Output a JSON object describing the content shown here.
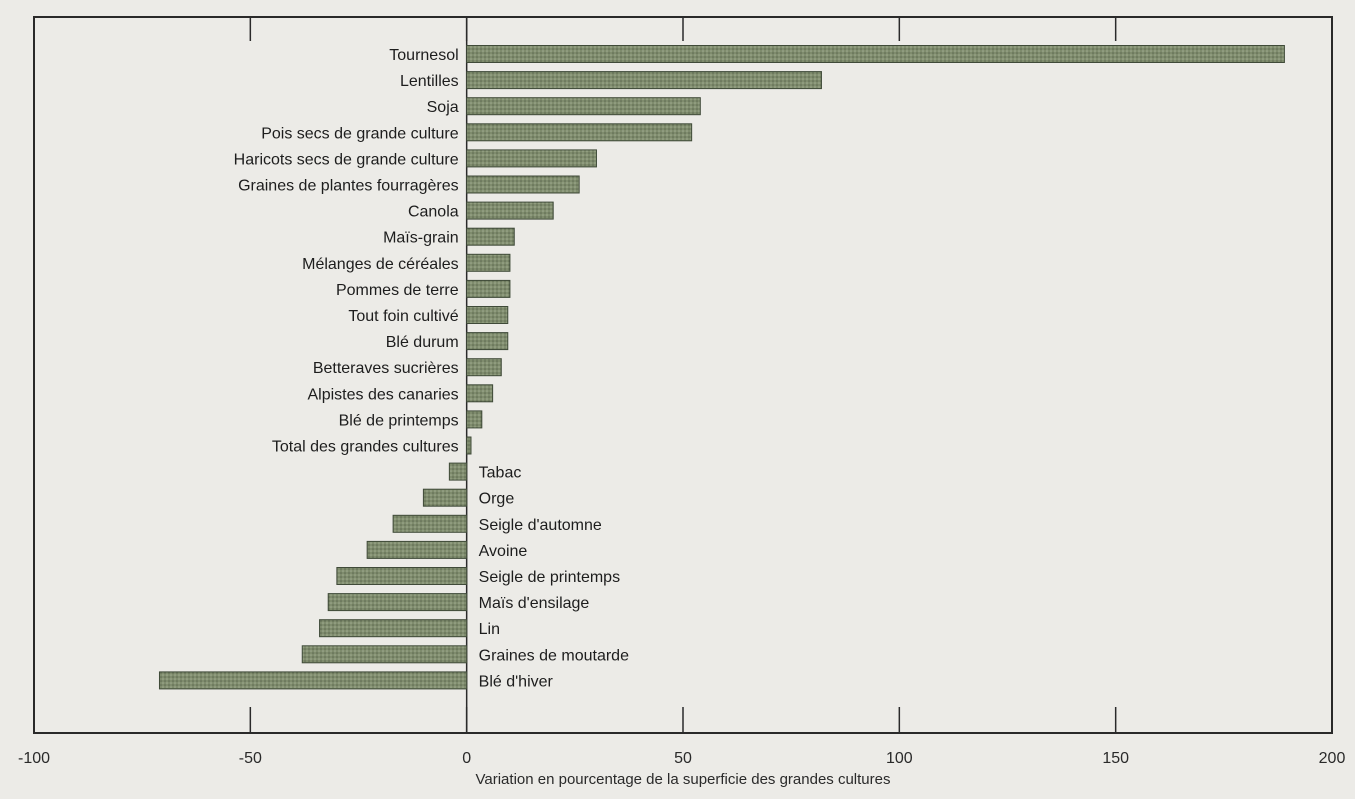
{
  "chart_data": {
    "type": "bar",
    "orientation": "horizontal",
    "title": "",
    "xlabel": "Variation en pourcentage de la superficie des grandes cultures",
    "ylabel": "",
    "xlim": [
      -100,
      200
    ],
    "xticks": [
      -100,
      -50,
      0,
      50,
      100,
      150,
      200
    ],
    "tick_labels": [
      "-100",
      "-50",
      "0",
      "50",
      "100",
      "150",
      "200"
    ],
    "grid": false,
    "legend": "none",
    "colors": {
      "bar_fill": "#7d8a6c",
      "bar_stroke": "#3f4a38",
      "background": "#ecebe7",
      "frame": "#2a2a2a"
    },
    "categories": [
      "Tournesol",
      "Lentilles",
      "Soja",
      "Pois secs de grande culture",
      "Haricots secs de grande culture",
      "Graines de plantes fourragères",
      "Canola",
      "Maïs-grain",
      "Mélanges de céréales",
      "Pommes de terre",
      "Tout foin cultivé",
      "Blé durum",
      "Betteraves sucrières",
      "Alpistes des canaries",
      "Blé de printemps",
      "Total des grandes cultures",
      "Tabac",
      "Orge",
      "Seigle d'automne",
      "Avoine",
      "Seigle de printemps",
      "Maïs d'ensilage",
      "Lin",
      "Graines de moutarde",
      "Blé d'hiver"
    ],
    "values": [
      189,
      82,
      54,
      52,
      30,
      26,
      20,
      11,
      10,
      10,
      9.5,
      9.5,
      8,
      6,
      3.5,
      1,
      -4,
      -10,
      -17,
      -23,
      -30,
      -32,
      -34,
      -38,
      -71
    ]
  }
}
